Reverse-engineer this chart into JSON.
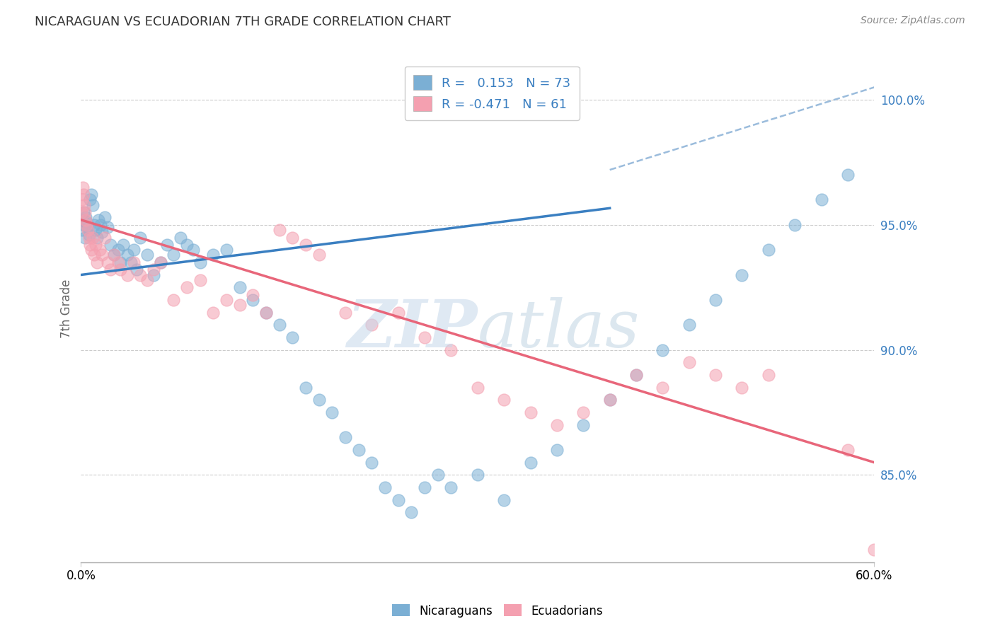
{
  "title": "NICARAGUAN VS ECUADORIAN 7TH GRADE CORRELATION CHART",
  "source": "Source: ZipAtlas.com",
  "ylabel": "7th Grade",
  "xmin": 0.0,
  "xmax": 60.0,
  "ymin": 81.5,
  "ymax": 101.8,
  "nicaraguan_color": "#7bafd4",
  "ecuadorian_color": "#f4a0b0",
  "nicaraguan_line_color": "#3a7fc1",
  "ecuadorian_line_color": "#e8667a",
  "dashed_line_color": "#9bbcdc",
  "background_color": "#ffffff",
  "grid_color": "#cccccc",
  "ytick_vals": [
    85.0,
    90.0,
    95.0,
    100.0
  ],
  "r_nicaraguan": 0.153,
  "r_ecuadorian": -0.471,
  "n_nicaraguan": 73,
  "n_ecuadorian": 61,
  "nic_line_x0": 0.0,
  "nic_line_y0": 93.0,
  "nic_line_x1": 60.0,
  "nic_line_y1": 97.0,
  "ecu_line_x0": 0.0,
  "ecu_line_y0": 95.2,
  "ecu_line_x1": 60.0,
  "ecu_line_y1": 85.5,
  "dash_x0": 40.0,
  "dash_y0": 97.2,
  "dash_x1": 60.0,
  "dash_y1": 100.5,
  "legend_blue": "R =   0.153   N = 73",
  "legend_pink": "R = -0.471   N = 61",
  "watermark_zip": "ZIP",
  "watermark_atlas": "atlas",
  "nic_x": [
    0.1,
    0.15,
    0.2,
    0.25,
    0.3,
    0.35,
    0.4,
    0.5,
    0.6,
    0.7,
    0.8,
    0.9,
    1.0,
    1.1,
    1.2,
    1.3,
    1.5,
    1.6,
    1.8,
    2.0,
    2.2,
    2.5,
    2.8,
    3.0,
    3.2,
    3.5,
    3.8,
    4.0,
    4.2,
    4.5,
    5.0,
    5.5,
    6.0,
    6.5,
    7.0,
    7.5,
    8.0,
    8.5,
    9.0,
    10.0,
    11.0,
    12.0,
    13.0,
    14.0,
    15.0,
    16.0,
    17.0,
    18.0,
    19.0,
    20.0,
    21.0,
    22.0,
    23.0,
    24.0,
    25.0,
    26.0,
    27.0,
    28.0,
    30.0,
    32.0,
    34.0,
    36.0,
    38.0,
    40.0,
    42.0,
    44.0,
    46.0,
    48.0,
    50.0,
    52.0,
    54.0,
    56.0,
    58.0
  ],
  "nic_y": [
    94.8,
    95.2,
    95.5,
    95.0,
    94.5,
    95.3,
    95.1,
    94.9,
    94.6,
    96.0,
    96.2,
    95.8,
    95.0,
    94.8,
    94.5,
    95.2,
    95.0,
    94.7,
    95.3,
    94.9,
    94.2,
    93.8,
    94.0,
    93.5,
    94.2,
    93.8,
    93.5,
    94.0,
    93.2,
    94.5,
    93.8,
    93.0,
    93.5,
    94.2,
    93.8,
    94.5,
    94.2,
    94.0,
    93.5,
    93.8,
    94.0,
    92.5,
    92.0,
    91.5,
    91.0,
    90.5,
    88.5,
    88.0,
    87.5,
    86.5,
    86.0,
    85.5,
    84.5,
    84.0,
    83.5,
    84.5,
    85.0,
    84.5,
    85.0,
    84.0,
    85.5,
    86.0,
    87.0,
    88.0,
    89.0,
    90.0,
    91.0,
    92.0,
    93.0,
    94.0,
    95.0,
    96.0,
    97.0
  ],
  "ecu_x": [
    0.05,
    0.1,
    0.15,
    0.2,
    0.25,
    0.3,
    0.35,
    0.4,
    0.5,
    0.6,
    0.7,
    0.8,
    0.9,
    1.0,
    1.1,
    1.2,
    1.4,
    1.6,
    1.8,
    2.0,
    2.2,
    2.5,
    2.8,
    3.0,
    3.5,
    4.0,
    4.5,
    5.0,
    5.5,
    6.0,
    7.0,
    8.0,
    9.0,
    10.0,
    11.0,
    12.0,
    13.0,
    14.0,
    15.0,
    16.0,
    17.0,
    18.0,
    20.0,
    22.0,
    24.0,
    26.0,
    28.0,
    30.0,
    32.0,
    34.0,
    36.0,
    38.0,
    40.0,
    42.0,
    44.0,
    46.0,
    48.0,
    50.0,
    52.0,
    58.0,
    60.0
  ],
  "ecu_y": [
    95.5,
    96.0,
    96.5,
    96.2,
    95.8,
    95.5,
    95.2,
    95.0,
    94.8,
    94.5,
    94.2,
    94.0,
    94.5,
    93.8,
    94.2,
    93.5,
    94.0,
    93.8,
    94.5,
    93.5,
    93.2,
    93.8,
    93.5,
    93.2,
    93.0,
    93.5,
    93.0,
    92.8,
    93.2,
    93.5,
    92.0,
    92.5,
    92.8,
    91.5,
    92.0,
    91.8,
    92.2,
    91.5,
    94.8,
    94.5,
    94.2,
    93.8,
    91.5,
    91.0,
    91.5,
    90.5,
    90.0,
    88.5,
    88.0,
    87.5,
    87.0,
    87.5,
    88.0,
    89.0,
    88.5,
    89.5,
    89.0,
    88.5,
    89.0,
    86.0,
    82.0
  ]
}
